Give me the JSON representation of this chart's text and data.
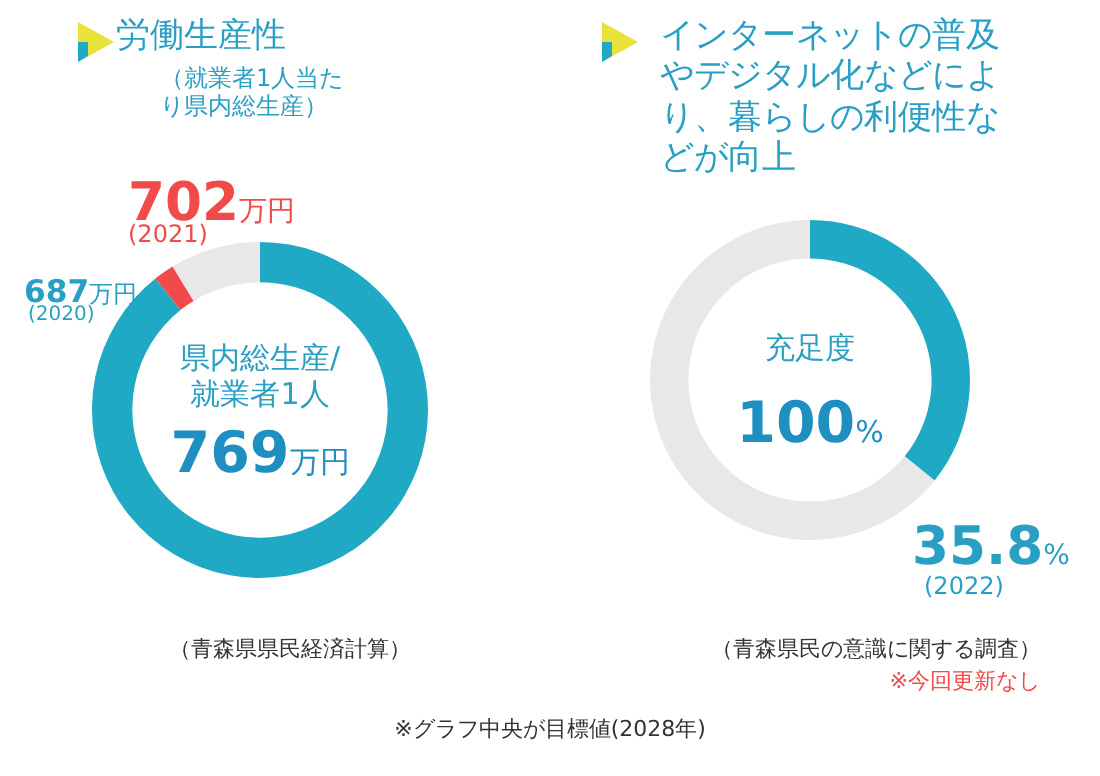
{
  "chart_data": [
    {
      "type": "donut",
      "title": "労働生産性",
      "subtitle": "（就業者1人当たり県内総生産）",
      "categories": [
        "(2020)",
        "(2021)",
        null
      ],
      "values": [
        89.3,
        2.0,
        8.7
      ],
      "colors": [
        "#1fa9c4",
        "#f04a4a",
        "#e8e8e8"
      ],
      "annotations": [
        "687万円",
        "702万円",
        "県内総生産/\n就業者1人",
        "769万円",
        "（青森県県民経済計算）",
        "※グラフ中央が目標値(2028年)"
      ]
    },
    {
      "type": "donut",
      "title": "インターネットの普及やデジタル化などにより、暮らしの利便性などが向上",
      "categories": [
        "(2022)",
        null
      ],
      "values": [
        35.8,
        64.2
      ],
      "colors": [
        "#1fa9c4",
        "#e8e8e8"
      ],
      "value_labels": [
        "35.8%",
        null
      ],
      "annotations": [
        "充足度",
        "100%",
        "（青森県民の意識に関する調査）",
        "※今回更新なし"
      ]
    }
  ]
}
